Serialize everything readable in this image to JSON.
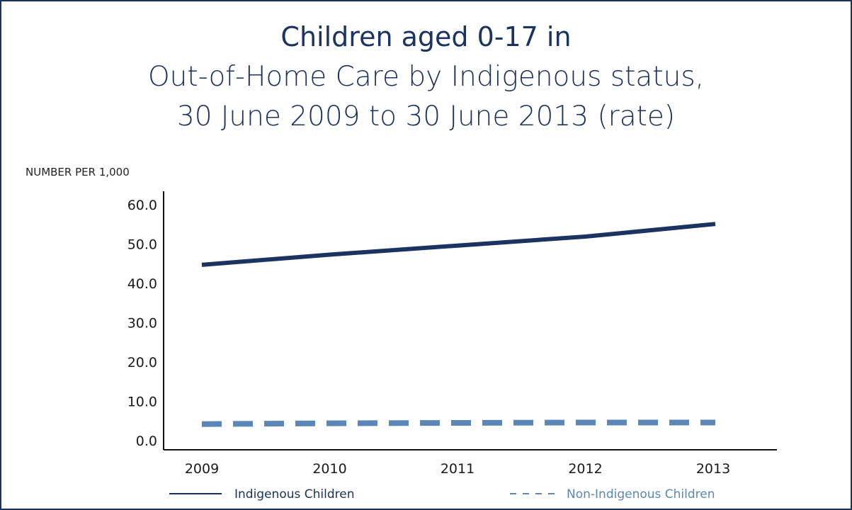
{
  "title_lines": [
    "Children aged 0-17 in",
    "Out-of-Home Care by Indigenous status,",
    "30 June 2009 to 30 June 2013 (rate)"
  ],
  "colors": {
    "indigenous": "#1b3360",
    "non_indigenous": "#5b87b8",
    "frame": "#1b3360"
  },
  "chart_data": {
    "type": "line",
    "title": "Children aged 0-17 in Out-of-Home Care by Indigenous status, 30 June 2009 to 30 June 2013 (rate)",
    "ylabel": "NUMBER PER 1,000",
    "xlabel": "",
    "x": [
      "2009",
      "2010",
      "2011",
      "2012",
      "2013"
    ],
    "y_ticks": [
      "0.0",
      "10.0",
      "20.0",
      "30.0",
      "40.0",
      "50.0",
      "60.0"
    ],
    "ylim": [
      0,
      60
    ],
    "grid": false,
    "legend_position": "bottom",
    "series": [
      {
        "name": "Indigenous Children",
        "values": [
          44.7,
          47.3,
          49.6,
          51.9,
          55.1
        ],
        "style": "solid"
      },
      {
        "name": "Non-Indigenous Children",
        "values": [
          4.2,
          4.4,
          4.5,
          4.6,
          4.6
        ],
        "style": "dashed"
      }
    ]
  }
}
